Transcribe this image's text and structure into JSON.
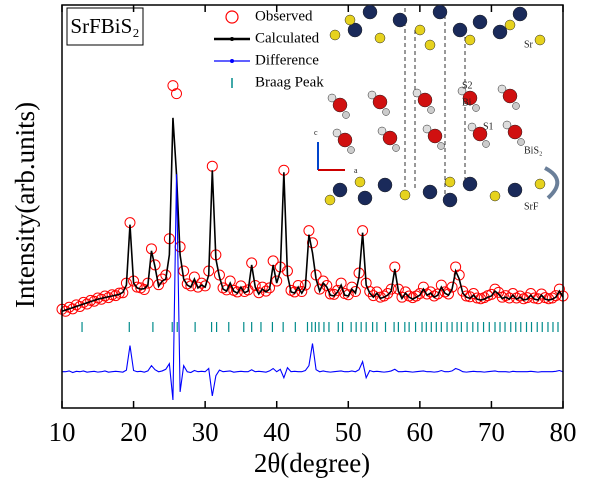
{
  "chart_data": {
    "type": "xrd",
    "title": "SrFBiS₂",
    "x_label": "2θ(degree)",
    "y_label": "Intensity(arb.units)",
    "xlim": [
      10,
      80
    ],
    "ylim": [
      0,
      100
    ],
    "xticks": [
      10,
      20,
      30,
      40,
      50,
      60,
      70,
      80
    ],
    "x": [
      10,
      10.5,
      11,
      11.5,
      12,
      12.5,
      13,
      13.5,
      14,
      14.5,
      15,
      15.5,
      16,
      16.5,
      17,
      17.5,
      18,
      18.5,
      19,
      19.5,
      20,
      20.5,
      21,
      21.5,
      22,
      22.5,
      23,
      23.5,
      24,
      24.5,
      25,
      25.5,
      26,
      26.5,
      27,
      27.5,
      28,
      28.5,
      29,
      29.5,
      30,
      30.5,
      31,
      31.5,
      32,
      32.5,
      33,
      33.5,
      34,
      34.5,
      35,
      35.5,
      36,
      36.5,
      37,
      37.5,
      38,
      38.5,
      39,
      39.5,
      40,
      40.5,
      41,
      41.5,
      42,
      42.5,
      43,
      43.5,
      44,
      44.5,
      45,
      45.5,
      46,
      46.5,
      47,
      47.5,
      48,
      48.5,
      49,
      49.5,
      50,
      50.5,
      51,
      51.5,
      52,
      52.5,
      53,
      53.5,
      54,
      54.5,
      55,
      55.5,
      56,
      56.5,
      57,
      57.5,
      58,
      58.5,
      59,
      59.5,
      60,
      60.5,
      61,
      61.5,
      62,
      62.5,
      63,
      63.5,
      64,
      64.5,
      65,
      65.5,
      66,
      66.5,
      67,
      67.5,
      68,
      68.5,
      69,
      69.5,
      70,
      70.5,
      71,
      71.5,
      72,
      72.5,
      73,
      73.5,
      74,
      74.5,
      75,
      75.5,
      76,
      76.5,
      77,
      77.5,
      78,
      78.5,
      79,
      79.5,
      80
    ],
    "series": [
      {
        "name": "Observed",
        "color": "#ff0000",
        "marker": "circle",
        "values": [
          24.5,
          24,
          25,
          24.6,
          25.6,
          25.2,
          26.2,
          25.8,
          26.7,
          26.5,
          27.3,
          27,
          27.8,
          27.4,
          28.1,
          27.9,
          28.5,
          28.6,
          31,
          46,
          31.5,
          30,
          29.8,
          29.4,
          31,
          39.5,
          35.5,
          30.6,
          32,
          33,
          42,
          80,
          78,
          40,
          34,
          30.8,
          30.3,
          32.5,
          30,
          31,
          30.3,
          34,
          60,
          38,
          33,
          29.8,
          29.3,
          31.5,
          29.2,
          28.8,
          30.3,
          28.9,
          29.3,
          36,
          30.4,
          28.6,
          30,
          29,
          29.8,
          36.5,
          31.5,
          35,
          59,
          34,
          29.2,
          28.8,
          30.4,
          28.9,
          30.5,
          44,
          41,
          33,
          29.5,
          31.5,
          30.4,
          28.3,
          28.2,
          29.2,
          31,
          28.4,
          28.1,
          30,
          28.9,
          33.5,
          44,
          31,
          28.9,
          27.9,
          28.8,
          27.5,
          27.8,
          28.4,
          29.5,
          35,
          29.5,
          27.5,
          28.8,
          27.8,
          27.4,
          27.8,
          28.4,
          30,
          28.3,
          28.8,
          27.8,
          28.3,
          30.5,
          28.8,
          28.3,
          30,
          35,
          33,
          29,
          27.8,
          27.6,
          28.4,
          27.3,
          27.1,
          27.4,
          27.9,
          28.2,
          29.5,
          28.7,
          27.5,
          27.9,
          27.3,
          28.4,
          27.3,
          27.8,
          27.1,
          27.4,
          28.4,
          27.3,
          27.1,
          28.3,
          27.4,
          27.1,
          27.3,
          27.9,
          29.5,
          27.8
        ]
      },
      {
        "name": "Calculated",
        "color": "#000000",
        "marker": "line",
        "values": [
          24,
          24.3,
          24.6,
          24.9,
          25.2,
          25.5,
          25.8,
          26.1,
          26.4,
          26.7,
          27,
          27.2,
          27.4,
          27.6,
          27.8,
          28,
          28.2,
          28.7,
          30.5,
          45.5,
          31,
          29.8,
          29.5,
          29.6,
          30.5,
          39,
          35,
          30.2,
          31.5,
          32,
          38,
          72,
          58,
          38,
          32,
          30.5,
          30,
          32,
          29.8,
          30.5,
          30,
          33,
          59,
          37,
          32.5,
          29.5,
          29,
          31,
          29,
          28.5,
          30,
          28.6,
          29,
          35.5,
          30,
          28.3,
          29.5,
          28.8,
          29.5,
          35.5,
          31,
          34,
          58.5,
          33,
          28.8,
          28.5,
          30,
          28.5,
          30,
          43,
          38.5,
          32,
          29,
          31,
          30,
          28,
          27.8,
          28.8,
          30.5,
          28,
          27.8,
          29.5,
          28.5,
          32.5,
          43.5,
          30.5,
          28.5,
          27.5,
          28.5,
          27.2,
          27.5,
          28,
          29,
          34.5,
          29,
          27.2,
          28.5,
          27.5,
          27,
          27.5,
          28,
          29.5,
          28,
          28.5,
          27.5,
          28,
          30,
          28.5,
          28,
          29.5,
          34,
          32,
          28.5,
          27.5,
          27.2,
          28,
          27,
          26.8,
          27,
          27.5,
          27.8,
          29,
          28.3,
          27.2,
          27.5,
          27,
          28,
          27,
          27.5,
          26.8,
          27,
          28,
          27,
          26.8,
          28,
          27,
          26.8,
          27,
          27.5,
          29,
          27.5
        ]
      },
      {
        "name": "Difference",
        "color": "#0000ff",
        "marker": "line",
        "values": [
          9,
          9,
          9.2,
          8.8,
          9.1,
          9,
          9.2,
          8.9,
          9,
          9.1,
          8.9,
          9,
          9.2,
          8.9,
          9,
          9.1,
          9,
          8.9,
          9.4,
          15.5,
          9.3,
          9,
          9.1,
          8.9,
          9.2,
          10.5,
          9.5,
          9,
          9.2,
          9.6,
          11,
          2,
          58,
          4,
          10.5,
          9,
          8.8,
          9.3,
          9,
          9.1,
          9,
          9.8,
          3,
          8,
          9.4,
          9,
          9.1,
          9.2,
          8.9,
          9,
          9.1,
          9,
          9,
          9.5,
          9,
          9.1,
          9,
          8.9,
          9.2,
          9.8,
          9,
          9.6,
          7.5,
          10,
          9,
          9.1,
          9,
          9,
          9.3,
          10.5,
          16,
          9.5,
          9,
          9.2,
          9,
          8.9,
          9,
          9.1,
          9.2,
          9,
          9,
          9.2,
          9,
          9.5,
          11.5,
          7.5,
          9.3,
          9,
          9.1,
          9,
          8.9,
          9,
          9.2,
          9.6,
          9,
          9,
          9.1,
          9,
          8.9,
          9,
          9.1,
          9.2,
          9,
          9,
          8.9,
          9,
          9.3,
          9,
          9,
          9.2,
          9.8,
          9.5,
          9,
          8.9,
          9,
          9.1,
          9,
          9,
          8.9,
          9,
          9.1,
          9.2,
          9,
          9,
          9,
          8.9,
          9.1,
          9,
          9,
          9,
          9,
          9.1,
          9,
          8.9,
          9,
          9,
          9,
          9,
          9.1,
          9.3,
          9
        ]
      }
    ],
    "bragg": {
      "name": "Braag Peak",
      "color": "#008b8b",
      "positions": [
        12.8,
        19.4,
        22.7,
        25.4,
        26.1,
        28.6,
        30.9,
        31.6,
        33.3,
        35.4,
        36.5,
        37.8,
        39.4,
        40.9,
        42.6,
        44.3,
        44.9,
        45.4,
        45.9,
        46.6,
        47.3,
        48.6,
        49.2,
        50.4,
        51.1,
        51.8,
        52.5,
        53.4,
        54,
        55.2,
        56.4,
        57,
        57.9,
        58.5,
        59.4,
        60.3,
        60.9,
        61.6,
        62.3,
        63,
        63.8,
        64.5,
        65.2,
        65.8,
        66.6,
        67.4,
        68.1,
        68.9,
        69.7,
        70.5,
        71.2,
        71.9,
        72.7,
        73.4,
        74.1,
        74.9,
        75.6,
        76.4,
        77.1,
        77.9,
        78.6,
        79.3
      ]
    },
    "annotations": [
      "Sr",
      "S2",
      "Bi",
      "S1",
      "BiS₂",
      "SrF",
      "c",
      "a"
    ]
  }
}
